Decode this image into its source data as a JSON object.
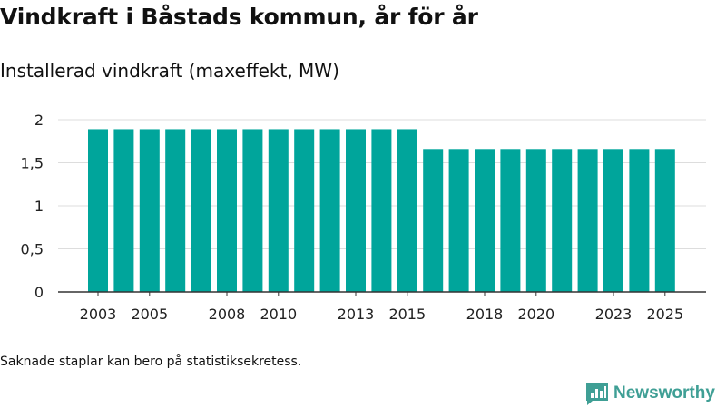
{
  "title": "Vindkraft i Båstads kommun, år för år",
  "subtitle": "Installerad vindkraft (maxeffekt, MW)",
  "footnote": "Saknade staplar kan bero på statistiksekretess.",
  "brand": {
    "name": "Newsworthy",
    "color": "#3f9f95",
    "icon": "newsworthy-logo-icon"
  },
  "colors": {
    "bar": "#00a59b",
    "grid": "#dddddd",
    "axis": "#333333",
    "text": "#222222"
  },
  "chart_data": {
    "type": "bar",
    "title": "Installerad vindkraft (maxeffekt, MW)",
    "xlabel": "",
    "ylabel": "",
    "ylim": [
      0,
      2
    ],
    "yticks": [
      0,
      0.5,
      1,
      1.5,
      2
    ],
    "ytick_labels": [
      "0",
      "0,5",
      "1",
      "1,5",
      "2"
    ],
    "grid": true,
    "legend": "none",
    "categories": [
      "2003",
      "2004",
      "2005",
      "2006",
      "2007",
      "2008",
      "2009",
      "2010",
      "2011",
      "2012",
      "2013",
      "2014",
      "2015",
      "2016",
      "2017",
      "2018",
      "2019",
      "2020",
      "2021",
      "2022",
      "2023",
      "2024",
      "2025"
    ],
    "values": [
      1.89,
      1.89,
      1.89,
      1.89,
      1.89,
      1.89,
      1.89,
      1.89,
      1.89,
      1.89,
      1.89,
      1.89,
      1.89,
      1.66,
      1.66,
      1.66,
      1.66,
      1.66,
      1.66,
      1.66,
      1.66,
      1.66,
      1.66
    ],
    "xtick_labels": [
      "2003",
      "2005",
      "2008",
      "2010",
      "2013",
      "2015",
      "2018",
      "2020",
      "2023",
      "2025"
    ]
  }
}
